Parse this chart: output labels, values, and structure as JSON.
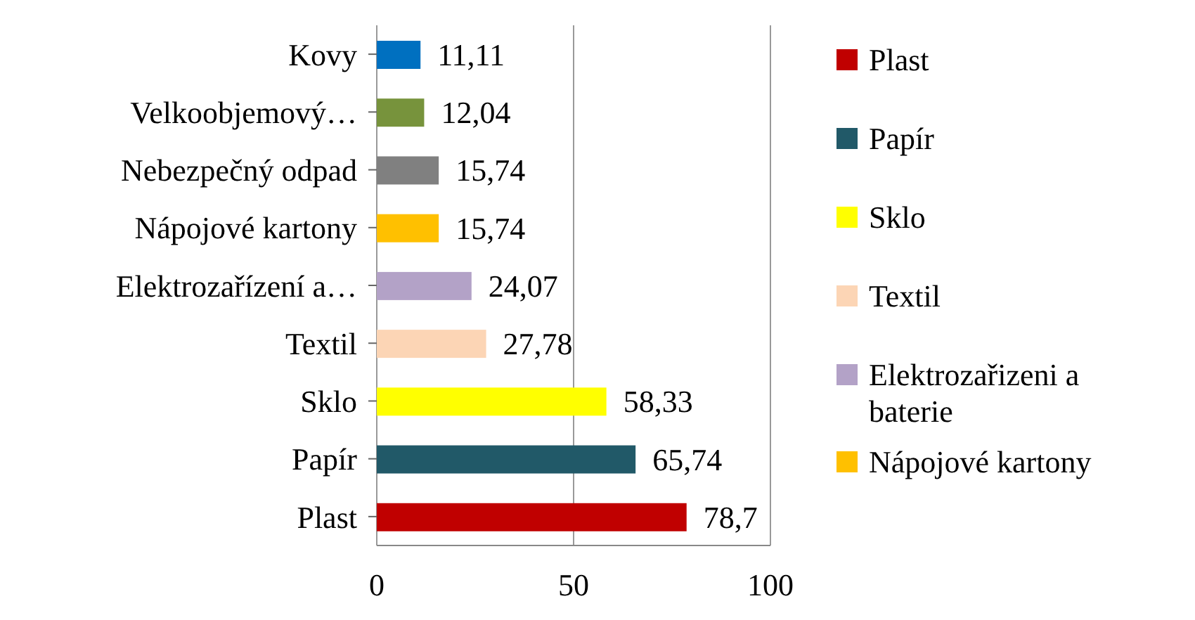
{
  "chart_data": {
    "type": "bar",
    "orientation": "horizontal",
    "stacked": true,
    "categories": [
      "Kovy",
      "Velkoobjemový…",
      "Nebezpečný odpad",
      "Nápojové kartony",
      "Elektrozařízení a…",
      "Textil",
      "Sklo",
      "Papír",
      "Plast"
    ],
    "series": [
      {
        "name": "Plast",
        "color": "#c00000",
        "values": [
          null,
          null,
          null,
          null,
          null,
          null,
          null,
          null,
          78.7
        ],
        "value_labels": [
          null,
          null,
          null,
          null,
          null,
          null,
          null,
          null,
          "78,7"
        ]
      },
      {
        "name": "Papír",
        "color": "#215968",
        "values": [
          null,
          null,
          null,
          null,
          null,
          null,
          null,
          65.74,
          null
        ],
        "value_labels": [
          null,
          null,
          null,
          null,
          null,
          null,
          null,
          "65,74",
          null
        ]
      },
      {
        "name": "Sklo",
        "color": "#ffff00",
        "values": [
          null,
          null,
          null,
          null,
          null,
          null,
          58.33,
          null,
          null
        ],
        "value_labels": [
          null,
          null,
          null,
          null,
          null,
          null,
          "58,33",
          null,
          null
        ]
      },
      {
        "name": "Textil",
        "color": "#fcd5b5",
        "values": [
          null,
          null,
          null,
          null,
          null,
          27.78,
          null,
          null,
          null
        ],
        "value_labels": [
          null,
          null,
          null,
          null,
          null,
          "27,78",
          null,
          null,
          null
        ]
      },
      {
        "name": "Elektrozařizeni a baterie",
        "color": "#b3a2c7",
        "values": [
          null,
          null,
          null,
          null,
          24.07,
          null,
          null,
          null,
          null
        ],
        "value_labels": [
          null,
          null,
          null,
          null,
          "24,07",
          null,
          null,
          null,
          null
        ]
      },
      {
        "name": "Nápojové kartony",
        "color": "#ffc000",
        "values": [
          null,
          null,
          null,
          15.74,
          null,
          null,
          null,
          null,
          null
        ],
        "value_labels": [
          null,
          null,
          null,
          "15,74",
          null,
          null,
          null,
          null,
          null
        ]
      },
      {
        "color": "#808080",
        "values": [
          null,
          null,
          15.74,
          null,
          null,
          null,
          null,
          null,
          null
        ],
        "value_labels": [
          null,
          null,
          "15,74",
          null,
          null,
          null,
          null,
          null,
          null
        ]
      },
      {
        "color": "#77933c",
        "values": [
          null,
          12.04,
          null,
          null,
          null,
          null,
          null,
          null,
          null
        ],
        "value_labels": [
          null,
          "12,04",
          null,
          null,
          null,
          null,
          null,
          null,
          null
        ]
      },
      {
        "color": "#0070c0",
        "values": [
          11.11,
          null,
          null,
          null,
          null,
          null,
          null,
          null,
          null
        ],
        "value_labels": [
          "11,11",
          null,
          null,
          null,
          null,
          null,
          null,
          null,
          null
        ]
      }
    ],
    "xlim": [
      0,
      100
    ],
    "xticks": [
      0,
      50,
      100
    ],
    "grid": "x",
    "legend": "right"
  }
}
